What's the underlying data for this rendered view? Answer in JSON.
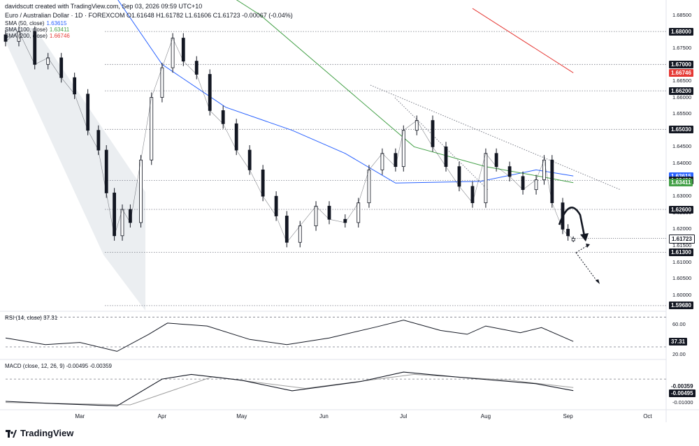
{
  "header": {
    "credit": "davidscutt created with TradingView.com, Sep 03, 2026 09:59 UTC+10",
    "symbol_line": "Euro / Australian Dollar · 1D · FOREXCOM  O1.61648 H1.61782 L1.61606 C1.61723 -0.00067 (-0.04%)"
  },
  "legend": [
    {
      "label": "SMA (50, close)",
      "value": "1.63615",
      "color": "#2962ff"
    },
    {
      "label": "SMA (100, close)",
      "value": "1.63411",
      "color": "#43a047"
    },
    {
      "label": "SMA (200, close)",
      "value": "1.66746",
      "color": "#e53935"
    }
  ],
  "rsi_legend": "RSI (14, close) 37.31",
  "macd_legend": "MACD (close, 12, 26, 9) -0.00495 -0.00359",
  "footer": {
    "brand": "TradingView"
  },
  "colors": {
    "up": "#131722",
    "down": "#131722",
    "sma50": "#2962ff",
    "sma100": "#43a047",
    "sma200": "#e53935",
    "channel": "#e8ebee"
  },
  "price_ticks": [
    "1.68500",
    "1.67500",
    "1.66500",
    "1.66000",
    "1.65500",
    "1.64500",
    "1.64000",
    "1.63000",
    "1.62500",
    "1.62000",
    "1.61500",
    "1.61000",
    "1.60500",
    "1.60000"
  ],
  "level_tags": [
    {
      "value": "1.68000",
      "style": "level"
    },
    {
      "value": "1.67000",
      "style": "level"
    },
    {
      "value": "1.66746",
      "style": "sma200"
    },
    {
      "value": "1.66200",
      "style": "level"
    },
    {
      "value": "1.65030",
      "style": "level"
    },
    {
      "value": "1.63615",
      "style": "sma50"
    },
    {
      "value": "1.63480",
      "style": "level"
    },
    {
      "value": "1.63411",
      "style": "sma100"
    },
    {
      "value": "1.62600",
      "style": "level"
    },
    {
      "value": "1.61723",
      "style": "price"
    },
    {
      "value": "1.61300",
      "style": "level"
    },
    {
      "value": "1.59680",
      "style": "level"
    }
  ],
  "rsi_ticks": [
    "60.00",
    "20.00"
  ],
  "rsi_tag": "37.31",
  "macd_ticks": [
    "-0.01000"
  ],
  "macd_tags": [
    "-0.00359",
    "-0.00495"
  ],
  "x_ticks": [
    "Mar",
    "Apr",
    "May",
    "Jun",
    "Jul",
    "Aug",
    "Sep",
    "Oct"
  ],
  "chart_data": {
    "type": "candlestick",
    "symbol": "EURAUD",
    "timeframe": "1D",
    "ylim": [
      1.5955,
      1.6885
    ],
    "x_range": [
      "2026-02-01",
      "2026-10-08"
    ],
    "levels": [
      1.68,
      1.67,
      1.662,
      1.6503,
      1.6348,
      1.626,
      1.613,
      1.5968
    ],
    "ohlc_points": [
      {
        "date": "2026-02-01",
        "close": 1.677
      },
      {
        "date": "2026-02-06",
        "close": 1.68
      },
      {
        "date": "2026-02-12",
        "close": 1.67
      },
      {
        "date": "2026-02-17",
        "close": 1.672
      },
      {
        "date": "2026-02-22",
        "close": 1.666
      },
      {
        "date": "2026-02-27",
        "close": 1.661
      },
      {
        "date": "2026-03-04",
        "close": 1.65
      },
      {
        "date": "2026-03-08",
        "close": 1.644
      },
      {
        "date": "2026-03-11",
        "close": 1.631
      },
      {
        "date": "2026-03-14",
        "close": 1.618
      },
      {
        "date": "2026-03-17",
        "close": 1.626
      },
      {
        "date": "2026-03-20",
        "close": 1.622
      },
      {
        "date": "2026-03-24",
        "close": 1.641
      },
      {
        "date": "2026-03-28",
        "close": 1.66
      },
      {
        "date": "2026-04-01",
        "close": 1.669
      },
      {
        "date": "2026-04-05",
        "close": 1.678
      },
      {
        "date": "2026-04-09",
        "close": 1.671
      },
      {
        "date": "2026-04-14",
        "close": 1.667
      },
      {
        "date": "2026-04-19",
        "close": 1.656
      },
      {
        "date": "2026-04-24",
        "close": 1.652
      },
      {
        "date": "2026-04-29",
        "close": 1.644
      },
      {
        "date": "2026-05-04",
        "close": 1.638
      },
      {
        "date": "2026-05-09",
        "close": 1.63
      },
      {
        "date": "2026-05-14",
        "close": 1.624
      },
      {
        "date": "2026-05-18",
        "close": 1.616
      },
      {
        "date": "2026-05-23",
        "close": 1.621
      },
      {
        "date": "2026-05-29",
        "close": 1.627
      },
      {
        "date": "2026-06-03",
        "close": 1.623
      },
      {
        "date": "2026-06-09",
        "close": 1.622
      },
      {
        "date": "2026-06-14",
        "close": 1.628
      },
      {
        "date": "2026-06-18",
        "close": 1.638
      },
      {
        "date": "2026-06-23",
        "close": 1.643
      },
      {
        "date": "2026-06-28",
        "close": 1.639
      },
      {
        "date": "2026-07-01",
        "close": 1.65
      },
      {
        "date": "2026-07-06",
        "close": 1.653
      },
      {
        "date": "2026-07-12",
        "close": 1.645
      },
      {
        "date": "2026-07-17",
        "close": 1.639
      },
      {
        "date": "2026-07-22",
        "close": 1.633
      },
      {
        "date": "2026-07-27",
        "close": 1.628
      },
      {
        "date": "2026-08-01",
        "close": 1.643
      },
      {
        "date": "2026-08-05",
        "close": 1.639
      },
      {
        "date": "2026-08-10",
        "close": 1.636
      },
      {
        "date": "2026-08-15",
        "close": 1.632
      },
      {
        "date": "2026-08-20",
        "close": 1.635
      },
      {
        "date": "2026-08-23",
        "close": 1.641
      },
      {
        "date": "2026-08-26",
        "close": 1.628
      },
      {
        "date": "2026-08-30",
        "close": 1.62
      },
      {
        "date": "2026-09-01",
        "close": 1.618
      },
      {
        "date": "2026-09-03",
        "open": 1.61648,
        "high": 1.61782,
        "low": 1.61606,
        "close": 1.61723
      }
    ],
    "sma50": [
      {
        "date": "2026-02-01",
        "value": 1.7
      },
      {
        "date": "2026-03-15",
        "value": 1.69
      },
      {
        "date": "2026-04-01",
        "value": 1.67
      },
      {
        "date": "2026-04-25",
        "value": 1.657
      },
      {
        "date": "2026-05-20",
        "value": 1.65
      },
      {
        "date": "2026-06-09",
        "value": 1.643
      },
      {
        "date": "2026-06-28",
        "value": 1.634
      },
      {
        "date": "2026-07-30",
        "value": 1.6345
      },
      {
        "date": "2026-08-20",
        "value": 1.638
      },
      {
        "date": "2026-09-03",
        "value": 1.63615
      }
    ],
    "sma100": [
      {
        "date": "2026-04-05",
        "value": 1.702
      },
      {
        "date": "2026-05-08",
        "value": 1.685
      },
      {
        "date": "2026-06-06",
        "value": 1.665
      },
      {
        "date": "2026-07-05",
        "value": 1.645
      },
      {
        "date": "2026-08-01",
        "value": 1.639
      },
      {
        "date": "2026-08-25",
        "value": 1.6355
      },
      {
        "date": "2026-09-03",
        "value": 1.63411
      }
    ],
    "sma200": [
      {
        "date": "2026-07-27",
        "value": 1.687
      },
      {
        "date": "2026-09-03",
        "value": 1.66746
      }
    ],
    "rsi": {
      "last": 37.31,
      "ylim": [
        15,
        75
      ],
      "levels": [
        70,
        30
      ],
      "points": [
        {
          "date": "2026-02-01",
          "value": 42
        },
        {
          "date": "2026-02-16",
          "value": 33
        },
        {
          "date": "2026-03-01",
          "value": 36
        },
        {
          "date": "2026-03-15",
          "value": 24
        },
        {
          "date": "2026-03-27",
          "value": 47
        },
        {
          "date": "2026-04-03",
          "value": 62
        },
        {
          "date": "2026-04-18",
          "value": 58
        },
        {
          "date": "2026-05-04",
          "value": 40
        },
        {
          "date": "2026-05-18",
          "value": 33
        },
        {
          "date": "2026-06-03",
          "value": 42
        },
        {
          "date": "2026-06-21",
          "value": 57
        },
        {
          "date": "2026-07-01",
          "value": 66
        },
        {
          "date": "2026-07-15",
          "value": 52
        },
        {
          "date": "2026-07-25",
          "value": 47
        },
        {
          "date": "2026-08-01",
          "value": 58
        },
        {
          "date": "2026-08-14",
          "value": 49
        },
        {
          "date": "2026-08-22",
          "value": 56
        },
        {
          "date": "2026-09-03",
          "value": 37.31
        }
      ]
    },
    "macd": {
      "macd_last": -0.00495,
      "signal_last": -0.00359,
      "ylim": [
        -0.0125,
        0.0075
      ],
      "zero_line": true,
      "macd_points": [
        {
          "date": "2026-02-01",
          "value": -0.0095
        },
        {
          "date": "2026-02-20",
          "value": -0.0105
        },
        {
          "date": "2026-03-15",
          "value": -0.0115
        },
        {
          "date": "2026-04-01",
          "value": 0.0
        },
        {
          "date": "2026-04-12",
          "value": 0.002
        },
        {
          "date": "2026-05-01",
          "value": -0.0005
        },
        {
          "date": "2026-05-20",
          "value": -0.005
        },
        {
          "date": "2026-06-15",
          "value": -0.001
        },
        {
          "date": "2026-07-01",
          "value": 0.003
        },
        {
          "date": "2026-07-25",
          "value": 0.0005
        },
        {
          "date": "2026-08-20",
          "value": -0.002
        },
        {
          "date": "2026-09-03",
          "value": -0.00495
        }
      ],
      "signal_points": [
        {
          "date": "2026-02-01",
          "value": -0.01
        },
        {
          "date": "2026-03-20",
          "value": -0.011
        },
        {
          "date": "2026-04-20",
          "value": 0.001
        },
        {
          "date": "2026-05-25",
          "value": -0.004
        },
        {
          "date": "2026-07-05",
          "value": 0.002
        },
        {
          "date": "2026-08-10",
          "value": -0.0005
        },
        {
          "date": "2026-09-03",
          "value": -0.00359
        }
      ]
    }
  }
}
